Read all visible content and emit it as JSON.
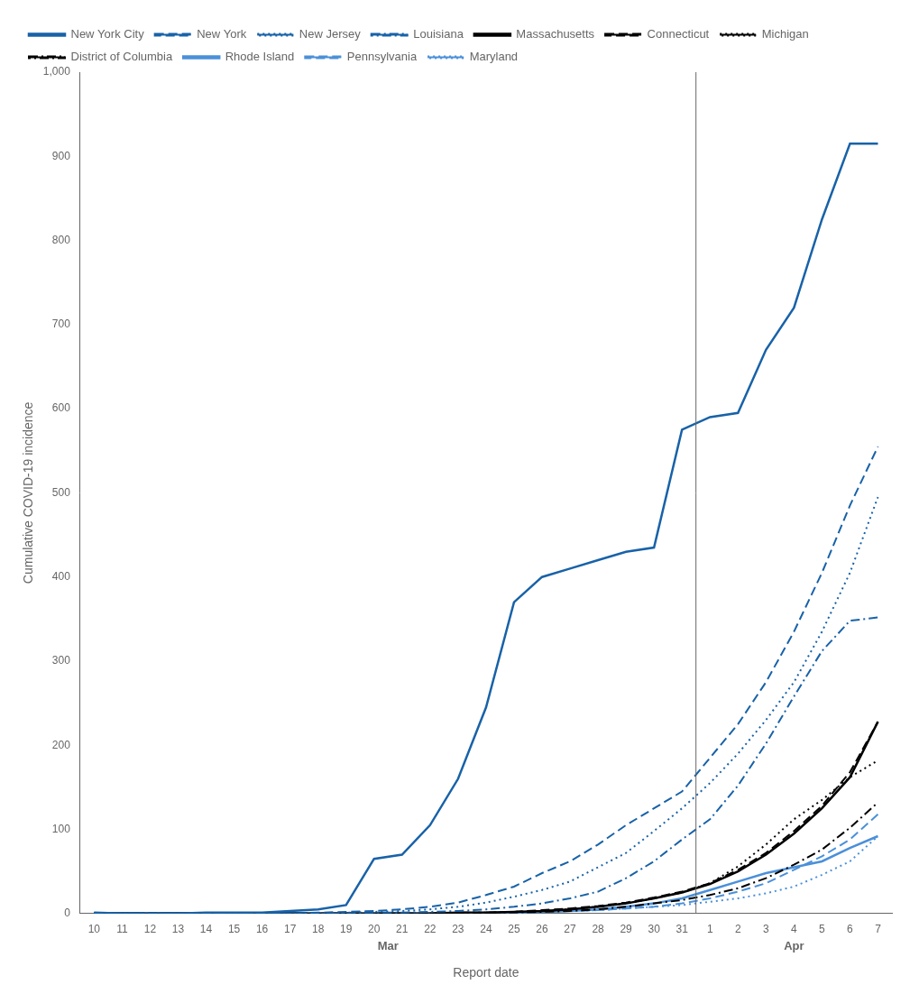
{
  "chart_data": {
    "type": "line",
    "xlabel": "Report date",
    "ylabel": "Cumulative COVID-19 incidence",
    "categories": [
      "10",
      "11",
      "12",
      "13",
      "14",
      "15",
      "16",
      "17",
      "18",
      "19",
      "20",
      "21",
      "22",
      "23",
      "24",
      "25",
      "26",
      "27",
      "28",
      "29",
      "30",
      "31",
      "1",
      "2",
      "3",
      "4",
      "5",
      "6",
      "7"
    ],
    "annotations": [
      "Mar",
      "Apr"
    ],
    "ylim": [
      0,
      1000
    ],
    "yticks": [
      0,
      100,
      200,
      300,
      400,
      500,
      600,
      700,
      800,
      900,
      {
        "value": 1000,
        "label": "1,000"
      }
    ],
    "grid": false,
    "legend": "upper left",
    "series": [
      {
        "name": "New York City",
        "color": "#1862a8",
        "line_style": "solid",
        "values": [
          1,
          0,
          0,
          0,
          1,
          1,
          1,
          3,
          5,
          10,
          65,
          70,
          105,
          160,
          245,
          370,
          400,
          410,
          420,
          430,
          435,
          575,
          590,
          595,
          670,
          720,
          825,
          915,
          915
        ]
      },
      {
        "name": "New York",
        "color": "#1862a8",
        "line_style": "dashed",
        "values": [
          0,
          0,
          0,
          0,
          0,
          0,
          0,
          0,
          1,
          2,
          3,
          5,
          8,
          13,
          22,
          32,
          48,
          62,
          82,
          105,
          125,
          145,
          185,
          225,
          275,
          335,
          405,
          485,
          555
        ]
      },
      {
        "name": "New Jersey",
        "color": "#1862a8",
        "line_style": "dotted",
        "values": [
          0,
          0,
          0,
          0,
          0,
          0,
          0,
          0,
          0,
          1,
          2,
          3,
          5,
          8,
          13,
          20,
          28,
          38,
          55,
          72,
          98,
          125,
          155,
          190,
          230,
          275,
          335,
          405,
          495
        ]
      },
      {
        "name": "Louisiana",
        "color": "#1862a8",
        "line_style": "dashdot",
        "values": [
          0,
          0,
          0,
          0,
          0,
          0,
          0,
          0,
          0,
          0,
          1,
          1,
          2,
          3,
          5,
          8,
          12,
          18,
          26,
          42,
          62,
          88,
          112,
          152,
          202,
          258,
          312,
          348,
          352
        ]
      },
      {
        "name": "Massachusetts",
        "color": "#000000",
        "line_style": "solid",
        "values": [
          0,
          0,
          0,
          0,
          0,
          0,
          0,
          0,
          0,
          0,
          0,
          0,
          0,
          1,
          1,
          2,
          3,
          5,
          8,
          12,
          18,
          25,
          35,
          50,
          70,
          95,
          125,
          162,
          228
        ]
      },
      {
        "name": "Connecticut",
        "color": "#000000",
        "line_style": "dashed",
        "values": [
          0,
          0,
          0,
          0,
          0,
          0,
          0,
          0,
          0,
          0,
          0,
          0,
          0,
          1,
          1,
          2,
          4,
          6,
          9,
          13,
          19,
          26,
          36,
          52,
          72,
          98,
          128,
          168,
          228
        ]
      },
      {
        "name": "Michigan",
        "color": "#000000",
        "line_style": "dotted",
        "values": [
          0,
          0,
          0,
          0,
          0,
          0,
          0,
          0,
          0,
          0,
          0,
          0,
          0,
          1,
          1,
          2,
          3,
          5,
          8,
          12,
          18,
          25,
          36,
          56,
          82,
          112,
          135,
          162,
          182
        ]
      },
      {
        "name": "District of Columbia",
        "color": "#000000",
        "line_style": "dashdot",
        "values": [
          0,
          0,
          0,
          0,
          0,
          0,
          0,
          0,
          0,
          0,
          0,
          0,
          0,
          0,
          1,
          1,
          2,
          3,
          5,
          8,
          12,
          16,
          22,
          30,
          42,
          58,
          76,
          102,
          132
        ]
      },
      {
        "name": "Rhode Island",
        "color": "#4a90d9",
        "line_style": "solid",
        "values": [
          0,
          0,
          0,
          0,
          0,
          0,
          0,
          0,
          0,
          0,
          0,
          0,
          0,
          0,
          0,
          1,
          2,
          3,
          5,
          8,
          12,
          18,
          28,
          38,
          48,
          55,
          62,
          78,
          92
        ]
      },
      {
        "name": "Pennsylvania",
        "color": "#4a90d9",
        "line_style": "dashed",
        "values": [
          0,
          0,
          0,
          0,
          0,
          0,
          0,
          0,
          0,
          0,
          0,
          0,
          0,
          0,
          0,
          1,
          2,
          3,
          4,
          6,
          8,
          12,
          18,
          26,
          36,
          52,
          68,
          88,
          118
        ]
      },
      {
        "name": "Maryland",
        "color": "#4a90d9",
        "line_style": "dotted",
        "values": [
          0,
          0,
          0,
          0,
          0,
          0,
          0,
          0,
          0,
          0,
          0,
          0,
          0,
          0,
          1,
          1,
          2,
          3,
          4,
          6,
          8,
          10,
          14,
          18,
          24,
          32,
          46,
          62,
          92
        ]
      }
    ]
  }
}
